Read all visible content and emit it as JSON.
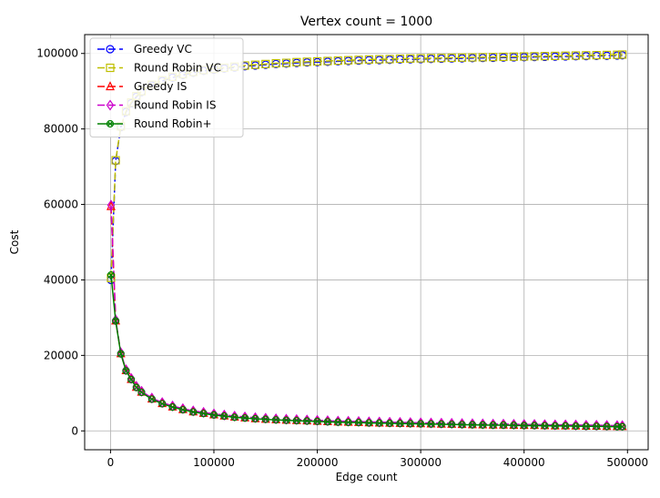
{
  "chart_data": {
    "type": "line",
    "title": "Vertex count = 1000",
    "xlabel": "Edge count",
    "ylabel": "Cost",
    "xlim": [
      -25000,
      520000
    ],
    "ylim": [
      -5000,
      105000
    ],
    "xticks": [
      0,
      100000,
      200000,
      300000,
      400000,
      500000
    ],
    "xtick_labels": [
      "0",
      "100000",
      "200000",
      "300000",
      "400000",
      "500000"
    ],
    "yticks": [
      0,
      20000,
      40000,
      60000,
      80000,
      100000
    ],
    "ytick_labels": [
      "0",
      "20000",
      "40000",
      "60000",
      "80000",
      "100000"
    ],
    "grid": true,
    "legend_position": "top-left",
    "x": [
      500,
      5000,
      10000,
      15000,
      20000,
      25000,
      30000,
      40000,
      50000,
      60000,
      70000,
      80000,
      90000,
      100000,
      110000,
      120000,
      130000,
      140000,
      150000,
      160000,
      170000,
      180000,
      190000,
      200000,
      210000,
      220000,
      230000,
      240000,
      250000,
      260000,
      270000,
      280000,
      290000,
      300000,
      310000,
      320000,
      330000,
      340000,
      350000,
      360000,
      370000,
      380000,
      390000,
      400000,
      410000,
      420000,
      430000,
      440000,
      450000,
      460000,
      470000,
      480000,
      490000,
      495000
    ],
    "series": [
      {
        "name": "Greedy VC",
        "color": "#0000ff",
        "marker": "circle",
        "dash": "8,4",
        "values": [
          40000,
          71500,
          80500,
          84500,
          86800,
          88500,
          89800,
          91500,
          92700,
          93600,
          94300,
          94900,
          95400,
          95700,
          96000,
          96300,
          96600,
          96800,
          97000,
          97200,
          97300,
          97500,
          97600,
          97700,
          97800,
          97900,
          98000,
          98100,
          98200,
          98250,
          98300,
          98400,
          98450,
          98500,
          98550,
          98600,
          98650,
          98700,
          98750,
          98800,
          98850,
          98900,
          98950,
          99000,
          99050,
          99100,
          99150,
          99200,
          99250,
          99300,
          99350,
          99400,
          99450,
          99500
        ]
      },
      {
        "name": "Round Robin VC",
        "color": "#bfbf00",
        "marker": "square",
        "dash": "8,4",
        "values": [
          40500,
          71700,
          80700,
          84700,
          87000,
          88700,
          90000,
          91700,
          92900,
          93800,
          94500,
          95100,
          95600,
          95900,
          96200,
          96500,
          96800,
          97000,
          97200,
          97400,
          97500,
          97700,
          97800,
          97900,
          98000,
          98100,
          98200,
          98300,
          98400,
          98450,
          98500,
          98600,
          98650,
          98700,
          98750,
          98800,
          98850,
          98900,
          98950,
          99000,
          99050,
          99100,
          99150,
          99200,
          99250,
          99300,
          99350,
          99400,
          99450,
          99500,
          99550,
          99600,
          99650,
          99700
        ]
      },
      {
        "name": "Greedy IS",
        "color": "#ff0000",
        "marker": "triangle",
        "dash": "8,4",
        "values": [
          59500,
          29200,
          20500,
          16000,
          13700,
          11600,
          10300,
          8500,
          7300,
          6400,
          5700,
          5100,
          4700,
          4300,
          4000,
          3700,
          3500,
          3300,
          3150,
          3000,
          2900,
          2800,
          2700,
          2600,
          2500,
          2400,
          2350,
          2300,
          2200,
          2150,
          2100,
          2050,
          2000,
          1950,
          1900,
          1850,
          1800,
          1750,
          1700,
          1650,
          1600,
          1600,
          1550,
          1500,
          1500,
          1450,
          1400,
          1400,
          1350,
          1300,
          1300,
          1250,
          1200,
          1200
        ]
      },
      {
        "name": "Round Robin IS",
        "color": "#cc00cc",
        "marker": "diamond",
        "dash": "8,4",
        "values": [
          59800,
          29400,
          20700,
          16200,
          13900,
          11800,
          10500,
          8700,
          7500,
          6600,
          5900,
          5300,
          4900,
          4500,
          4200,
          3900,
          3700,
          3500,
          3350,
          3200,
          3100,
          3000,
          2900,
          2800,
          2700,
          2600,
          2550,
          2500,
          2400,
          2350,
          2300,
          2250,
          2200,
          2150,
          2100,
          2050,
          2000,
          1950,
          1900,
          1850,
          1800,
          1800,
          1750,
          1700,
          1700,
          1650,
          1600,
          1600,
          1550,
          1500,
          1500,
          1450,
          1400,
          1400
        ]
      },
      {
        "name": "Round Robin+",
        "color": "#008000",
        "marker": "x-circle",
        "dash": "",
        "values": [
          41300,
          29100,
          20400,
          15900,
          13600,
          11500,
          10200,
          8400,
          7200,
          6300,
          5600,
          5000,
          4600,
          4200,
          3900,
          3600,
          3400,
          3200,
          3050,
          2900,
          2800,
          2700,
          2600,
          2500,
          2400,
          2300,
          2250,
          2200,
          2100,
          2050,
          2000,
          1950,
          1900,
          1850,
          1800,
          1750,
          1700,
          1650,
          1600,
          1550,
          1500,
          1500,
          1450,
          1400,
          1400,
          1350,
          1300,
          1300,
          1250,
          1200,
          1200,
          1150,
          1100,
          1100
        ]
      }
    ]
  }
}
